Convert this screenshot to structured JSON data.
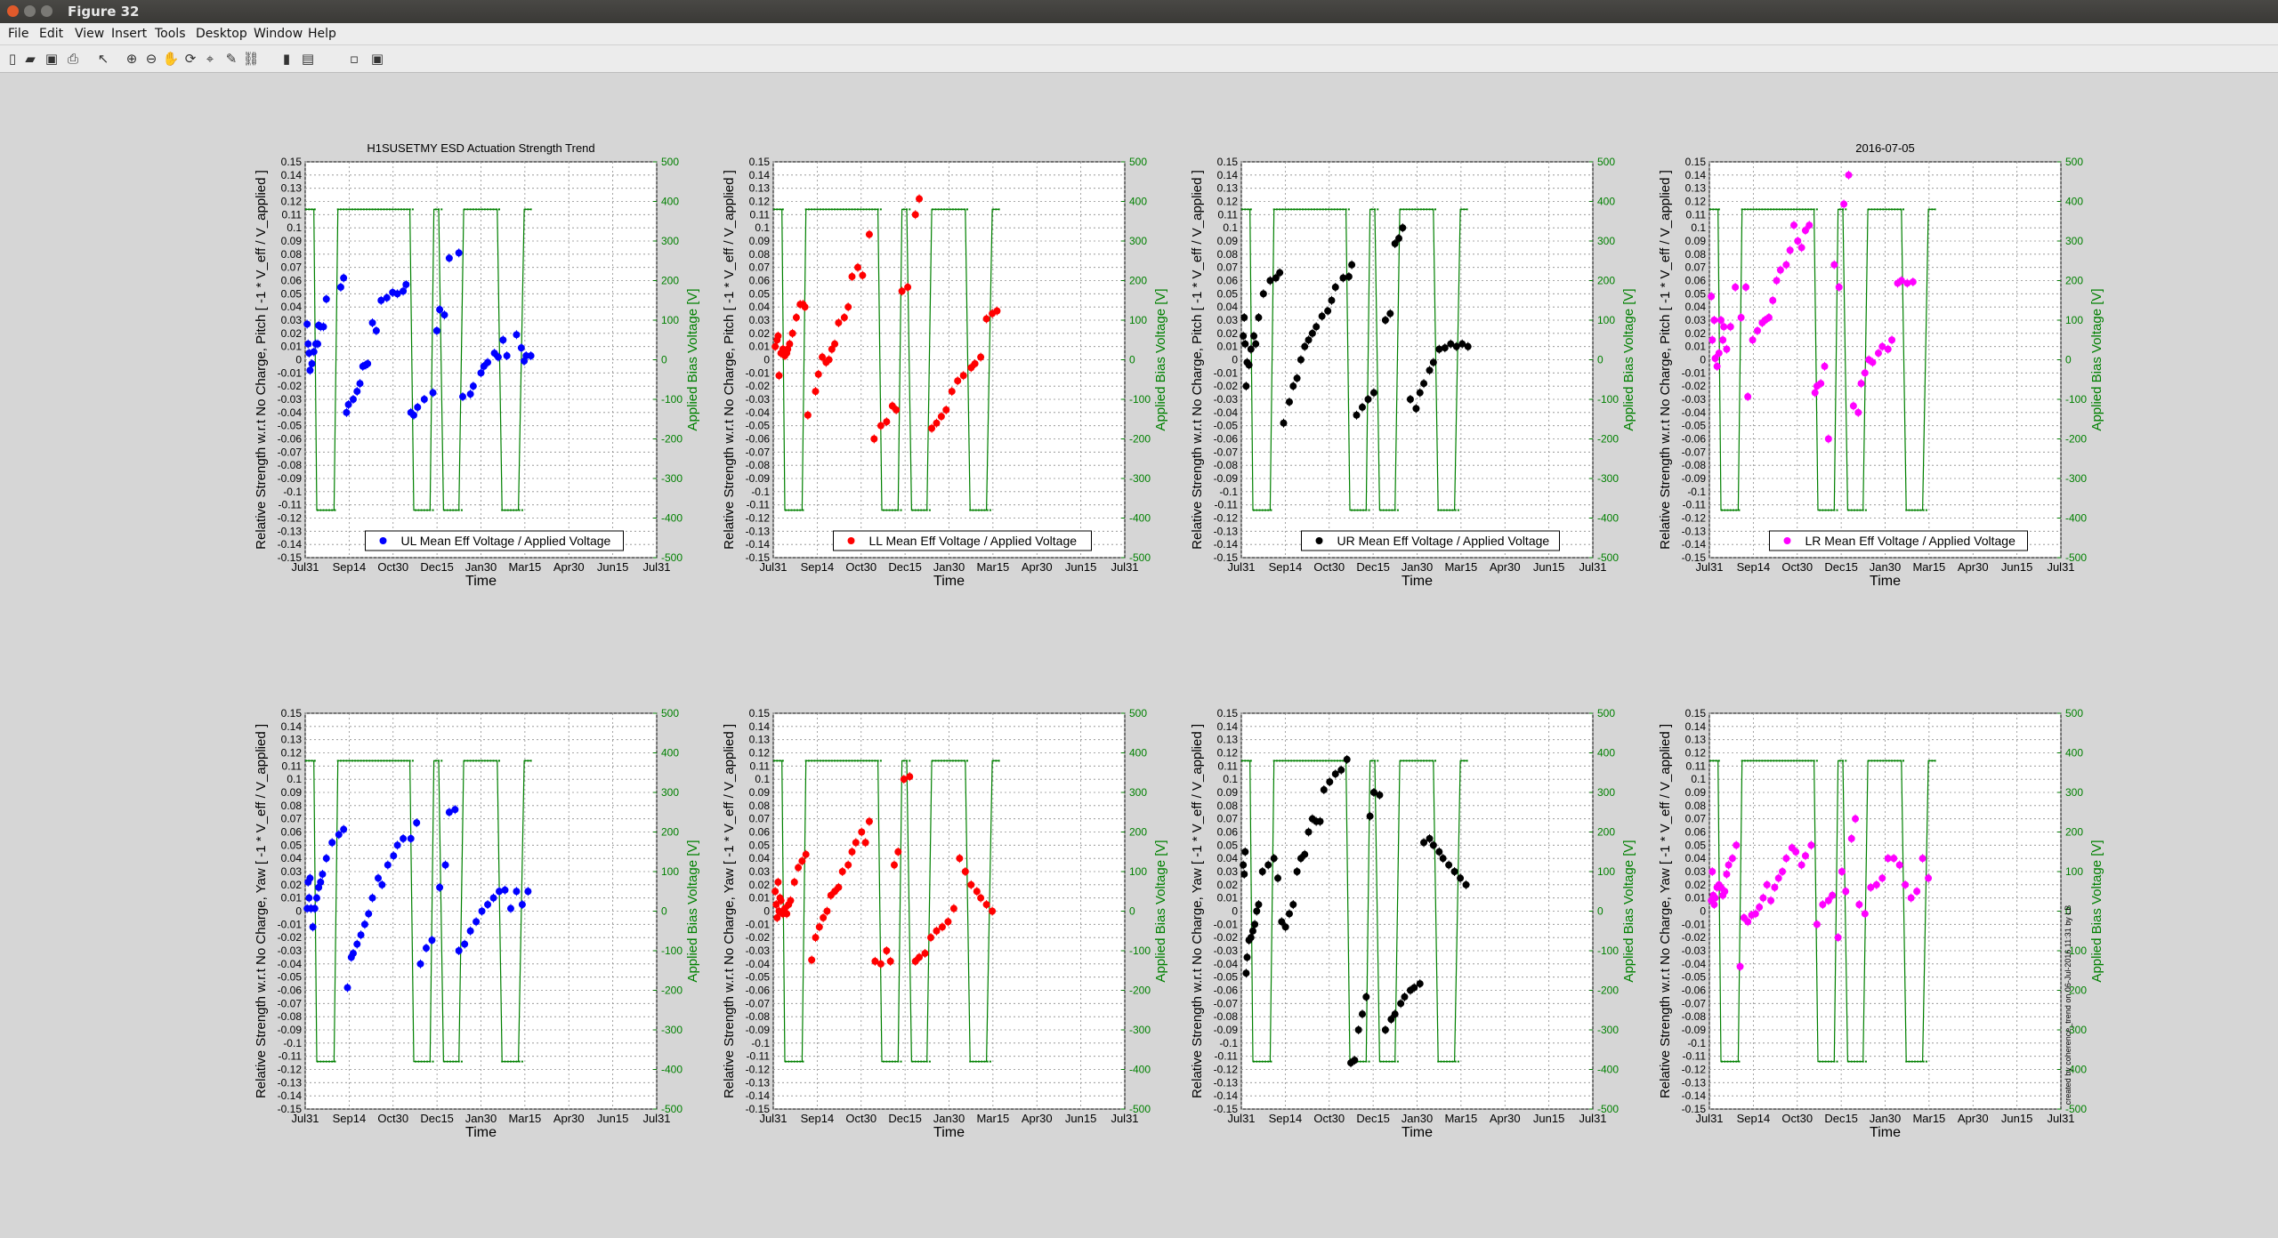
{
  "window": {
    "title": "Figure 32"
  },
  "menu": [
    "File",
    "Edit",
    "View",
    "Insert",
    "Tools",
    "Desktop",
    "Window",
    "Help"
  ],
  "toolbar": [
    {
      "name": "new-figure-icon",
      "glyph": "▯"
    },
    {
      "name": "open-file-icon",
      "glyph": "▰"
    },
    {
      "name": "save-icon",
      "glyph": "▣"
    },
    {
      "name": "print-icon",
      "glyph": "⎙"
    },
    {
      "name": "edit-plot-icon",
      "glyph": "↖"
    },
    {
      "name": "zoom-in-icon",
      "glyph": "⊕"
    },
    {
      "name": "zoom-out-icon",
      "glyph": "⊖"
    },
    {
      "name": "pan-icon",
      "glyph": "✋"
    },
    {
      "name": "rotate-3d-icon",
      "glyph": "⟳"
    },
    {
      "name": "data-cursor-icon",
      "glyph": "⌖"
    },
    {
      "name": "brush-icon",
      "glyph": "✎"
    },
    {
      "name": "link-plot-icon",
      "glyph": "⛓"
    },
    {
      "name": "insert-colorbar-icon",
      "glyph": "▮"
    },
    {
      "name": "insert-legend-icon",
      "glyph": "▤"
    },
    {
      "name": "hide-plot-tools-icon",
      "glyph": "▫"
    },
    {
      "name": "show-plot-tools-icon",
      "glyph": "▣"
    }
  ],
  "figure": {
    "suptitle_left": "H1SUSETMY ESD Actuation Strength Trend",
    "suptitle_right": "2016-07-05",
    "side_note": "created by coherence_trend on 06-Jul-2016 11:31 by LB"
  },
  "colors": {
    "UL": "#0000ff",
    "LL": "#ff0000",
    "UR": "#000000",
    "LR": "#ff00ff",
    "bias": "#008000",
    "grid": "#8c8c8c",
    "background": "#d6d6d6",
    "axes": "#ffffff"
  },
  "chart_data": [
    {
      "type": "scatter",
      "quadrant": "UL",
      "dof": "Pitch",
      "legend": "UL Mean Eff Voltage / Applied Voltage",
      "ylabel": "Relative Strength w.r.t No Charge, Pitch [ -1 * V_eff / V_applied ]",
      "y2label": "Applied Bias Voltage [V]",
      "xlabel": "Time",
      "xticks": [
        "Jul31",
        "Sep14",
        "Oct30",
        "Dec15",
        "Jan30",
        "Mar15",
        "Apr30",
        "Jun15",
        "Jul31"
      ],
      "ylim": [
        -0.15,
        0.15
      ],
      "y2lim": [
        -500,
        500
      ],
      "grid": true,
      "legend_loc": "bottom",
      "x_day": [
        2,
        3,
        4,
        5,
        7,
        9,
        11,
        13,
        14,
        16,
        19,
        22,
        37,
        40,
        43,
        45,
        50,
        54,
        57,
        60,
        63,
        65,
        70,
        74,
        79,
        85,
        91,
        96,
        102,
        105,
        110,
        113,
        117,
        124,
        133,
        137,
        140,
        145,
        150,
        160,
        164,
        172,
        175,
        183,
        186,
        190,
        197,
        201,
        206,
        210,
        220,
        225,
        228,
        230,
        235
      ],
      "y": [
        0.027,
        0.012,
        0.005,
        -0.008,
        -0.003,
        0.006,
        0.012,
        0.012,
        0.026,
        0.025,
        0.025,
        0.046,
        0.055,
        0.062,
        -0.04,
        -0.034,
        -0.03,
        -0.024,
        -0.018,
        -0.005,
        -0.004,
        -0.003,
        0.028,
        0.022,
        0.045,
        0.047,
        0.051,
        0.05,
        0.052,
        0.057,
        -0.04,
        -0.042,
        -0.036,
        -0.03,
        -0.025,
        0.022,
        0.038,
        0.034,
        0.077,
        0.081,
        -0.028,
        -0.026,
        -0.02,
        -0.01,
        -0.005,
        -0.002,
        0.005,
        0.002,
        0.015,
        0.003,
        0.019,
        0.009,
        -0.001,
        0.003,
        0.003
      ]
    },
    {
      "type": "scatter",
      "quadrant": "LL",
      "dof": "Pitch",
      "legend": "LL Mean Eff Voltage / Applied Voltage",
      "ylabel": "Relative Strength w.r.t No Charge, Pitch [ -1 * V_eff / V_applied ]",
      "y2label": "Applied Bias Voltage [V]",
      "xlabel": "Time",
      "xticks": [
        "Jul31",
        "Sep14",
        "Oct30",
        "Dec15",
        "Jan30",
        "Mar15",
        "Apr30",
        "Jun15",
        "Jul31"
      ],
      "ylim": [
        -0.15,
        0.15
      ],
      "y2lim": [
        -500,
        500
      ],
      "grid": true,
      "legend_loc": "bottom",
      "x_day": [
        2,
        4,
        5,
        6,
        8,
        10,
        12,
        14,
        15,
        17,
        20,
        24,
        28,
        31,
        33,
        36,
        44,
        47,
        51,
        55,
        58,
        61,
        64,
        68,
        74,
        78,
        82,
        88,
        93,
        100,
        105,
        112,
        118,
        124,
        128,
        134,
        140,
        148,
        152,
        165,
        170,
        175,
        180,
        186,
        192,
        198,
        206,
        210,
        216,
        222,
        228,
        233
      ],
      "y": [
        0.01,
        0.015,
        0.018,
        -0.012,
        0.005,
        0.008,
        0.003,
        0.005,
        0.008,
        0.012,
        0.02,
        0.032,
        0.042,
        0.042,
        0.04,
        -0.042,
        -0.024,
        -0.011,
        0.002,
        -0.002,
        0.0,
        0.008,
        0.012,
        0.028,
        0.032,
        0.04,
        0.063,
        0.07,
        0.064,
        0.095,
        -0.06,
        -0.05,
        -0.047,
        -0.035,
        -0.038,
        0.052,
        0.055,
        0.11,
        0.122,
        -0.052,
        -0.048,
        -0.043,
        -0.038,
        -0.024,
        -0.016,
        -0.012,
        -0.006,
        -0.003,
        0.002,
        0.031,
        0.035,
        0.037
      ]
    },
    {
      "type": "scatter",
      "quadrant": "UR",
      "dof": "Pitch",
      "legend": "UR Mean Eff Voltage / Applied Voltage",
      "ylabel": "Relative Strength w.r.t No Charge, Pitch [ -1 * V_eff / V_applied ]",
      "y2label": "Applied Bias Voltage [V]",
      "xlabel": "Time",
      "xticks": [
        "Jul31",
        "Sep14",
        "Oct30",
        "Dec15",
        "Jan30",
        "Mar15",
        "Apr30",
        "Jun15",
        "Jul31"
      ],
      "ylim": [
        -0.15,
        0.15
      ],
      "y2lim": [
        -500,
        500
      ],
      "grid": true,
      "legend_loc": "bottom",
      "x_day": [
        2,
        3,
        4,
        5,
        6,
        8,
        10,
        13,
        15,
        18,
        23,
        30,
        36,
        40,
        44,
        50,
        54,
        58,
        62,
        66,
        70,
        74,
        78,
        84,
        90,
        94,
        98,
        106,
        112,
        115,
        120,
        126,
        132,
        138,
        150,
        155,
        160,
        164,
        168,
        176,
        182,
        186,
        190,
        196,
        200,
        206,
        212,
        218,
        224,
        230,
        236
      ],
      "y": [
        0.018,
        0.032,
        0.012,
        -0.02,
        -0.002,
        -0.004,
        0.008,
        0.018,
        0.012,
        0.032,
        0.05,
        0.06,
        0.062,
        0.066,
        -0.048,
        -0.032,
        -0.02,
        -0.014,
        0.0,
        0.01,
        0.015,
        0.02,
        0.025,
        0.033,
        0.037,
        0.045,
        0.055,
        0.062,
        0.063,
        0.072,
        -0.042,
        -0.036,
        -0.03,
        -0.025,
        0.03,
        0.035,
        0.088,
        0.092,
        0.1,
        -0.03,
        -0.037,
        -0.025,
        -0.018,
        -0.008,
        -0.002,
        0.008,
        0.009,
        0.012,
        0.01,
        0.012,
        0.01
      ]
    },
    {
      "type": "scatter",
      "quadrant": "LR",
      "dof": "Pitch",
      "legend": "LR Mean Eff Voltage / Applied Voltage",
      "ylabel": "Relative Strength w.r.t No Charge, Pitch [ -1 * V_eff / V_applied ]",
      "y2label": "Applied Bias Voltage [V]",
      "xlabel": "Time",
      "xticks": [
        "Jul31",
        "Sep14",
        "Oct30",
        "Dec15",
        "Jan30",
        "Mar15",
        "Apr30",
        "Jun15",
        "Jul31"
      ],
      "ylim": [
        -0.15,
        0.15
      ],
      "y2lim": [
        -500,
        500
      ],
      "grid": true,
      "legend_loc": "bottom",
      "x_day": [
        2,
        3,
        5,
        6,
        8,
        10,
        12,
        14,
        15,
        18,
        22,
        27,
        33,
        38,
        40,
        45,
        50,
        55,
        58,
        62,
        66,
        70,
        74,
        80,
        84,
        88,
        92,
        96,
        100,
        104,
        110,
        112,
        116,
        120,
        124,
        130,
        135,
        140,
        145,
        150,
        155,
        158,
        162,
        166,
        170,
        176,
        180,
        186,
        190,
        196,
        200,
        206,
        212
      ],
      "y": [
        0.048,
        0.015,
        0.03,
        0.001,
        -0.005,
        0.005,
        0.03,
        0.015,
        0.025,
        0.008,
        0.025,
        0.055,
        0.032,
        0.055,
        -0.028,
        0.015,
        0.022,
        0.028,
        0.03,
        0.032,
        0.045,
        0.06,
        0.068,
        0.072,
        0.083,
        0.102,
        0.09,
        0.085,
        0.098,
        0.102,
        -0.025,
        -0.02,
        -0.018,
        -0.005,
        -0.06,
        0.072,
        0.055,
        0.118,
        0.14,
        -0.035,
        -0.04,
        -0.018,
        -0.01,
        0.0,
        -0.002,
        0.005,
        0.01,
        0.008,
        0.015,
        0.058,
        0.06,
        0.058,
        0.059
      ]
    },
    {
      "type": "scatter",
      "quadrant": "UL",
      "dof": "Yaw",
      "legend": "",
      "ylabel": "Relative Strength w.r.t No Charge, Yaw [ -1 * V_eff / V_applied ]",
      "y2label": "Applied Bias Voltage [V]",
      "xlabel": "Time",
      "xticks": [
        "Jul31",
        "Sep14",
        "Oct30",
        "Dec15",
        "Jan30",
        "Mar15",
        "Apr30",
        "Jun15",
        "Jul31"
      ],
      "ylim": [
        -0.15,
        0.15
      ],
      "y2lim": [
        -500,
        500
      ],
      "grid": true,
      "x_day": [
        2,
        3,
        4,
        5,
        6,
        8,
        10,
        12,
        14,
        16,
        18,
        22,
        28,
        35,
        40,
        44,
        48,
        50,
        54,
        58,
        62,
        66,
        70,
        76,
        80,
        86,
        92,
        96,
        102,
        110,
        116,
        120,
        126,
        132,
        140,
        146,
        150,
        156,
        160,
        166,
        172,
        178,
        184,
        190,
        196,
        202,
        208,
        214,
        220,
        226,
        232
      ],
      "y": [
        0.002,
        0.022,
        0.01,
        0.025,
        0.002,
        -0.012,
        0.002,
        0.01,
        0.018,
        0.022,
        0.028,
        0.04,
        0.052,
        0.058,
        0.062,
        -0.058,
        -0.035,
        -0.032,
        -0.025,
        -0.018,
        -0.01,
        -0.002,
        0.01,
        0.025,
        0.02,
        0.035,
        0.042,
        0.05,
        0.055,
        0.055,
        0.067,
        -0.04,
        -0.028,
        -0.022,
        0.018,
        0.035,
        0.075,
        0.077,
        -0.03,
        -0.025,
        -0.015,
        -0.008,
        0.0,
        0.005,
        0.01,
        0.015,
        0.016,
        0.002,
        0.015,
        0.005,
        0.015
      ]
    },
    {
      "type": "scatter",
      "quadrant": "LL",
      "dof": "Yaw",
      "legend": "",
      "ylabel": "Relative Strength w.r.t No Charge, Yaw [ -1 * V_eff / V_applied ]",
      "y2label": "Applied Bias Voltage [V]",
      "xlabel": "Time",
      "xticks": [
        "Jul31",
        "Sep14",
        "Oct30",
        "Dec15",
        "Jan30",
        "Mar15",
        "Apr30",
        "Jun15",
        "Jul31"
      ],
      "ylim": [
        -0.15,
        0.15
      ],
      "y2lim": [
        -500,
        500
      ],
      "grid": true,
      "x_day": [
        2,
        3,
        4,
        5,
        6,
        7,
        8,
        10,
        12,
        14,
        16,
        18,
        22,
        26,
        30,
        34,
        40,
        44,
        48,
        52,
        56,
        60,
        64,
        68,
        72,
        78,
        82,
        86,
        92,
        96,
        100,
        106,
        112,
        118,
        122,
        126,
        130,
        136,
        142,
        148,
        152,
        158,
        164,
        170,
        176,
        182,
        188,
        194,
        200,
        206,
        212,
        216,
        222,
        228
      ],
      "y": [
        0.015,
        0.005,
        -0.005,
        0.022,
        0.0,
        0.01,
        0.008,
        -0.002,
        0.002,
        -0.002,
        0.005,
        0.008,
        0.022,
        0.033,
        0.038,
        0.043,
        -0.037,
        -0.02,
        -0.012,
        -0.005,
        0.0,
        0.012,
        0.015,
        0.018,
        0.03,
        0.035,
        0.045,
        0.052,
        0.06,
        0.052,
        0.068,
        -0.038,
        -0.04,
        -0.03,
        -0.038,
        0.035,
        0.045,
        0.1,
        0.102,
        -0.038,
        -0.035,
        -0.032,
        -0.02,
        -0.015,
        -0.012,
        -0.008,
        0.002,
        0.04,
        0.03,
        0.02,
        0.015,
        0.01,
        0.005,
        0.0
      ]
    },
    {
      "type": "scatter",
      "quadrant": "UR",
      "dof": "Yaw",
      "legend": "",
      "ylabel": "Relative Strength w.r.t No Charge, Yaw [ -1 * V_eff / V_applied ]",
      "y2label": "Applied Bias Voltage [V]",
      "xlabel": "Time",
      "xticks": [
        "Jul31",
        "Sep14",
        "Oct30",
        "Dec15",
        "Jan30",
        "Mar15",
        "Apr30",
        "Jun15",
        "Jul31"
      ],
      "ylim": [
        -0.15,
        0.15
      ],
      "y2lim": [
        -500,
        500
      ],
      "grid": true,
      "x_day": [
        2,
        3,
        4,
        5,
        6,
        8,
        10,
        12,
        14,
        16,
        18,
        22,
        28,
        34,
        38,
        42,
        46,
        50,
        54,
        58,
        62,
        66,
        70,
        74,
        78,
        82,
        86,
        92,
        98,
        104,
        110,
        114,
        118,
        122,
        126,
        130,
        134,
        138,
        144,
        150,
        156,
        160,
        166,
        170,
        176,
        180,
        186,
        190,
        196,
        200,
        206,
        210,
        216,
        222,
        228,
        234
      ],
      "y": [
        0.035,
        0.028,
        0.045,
        -0.047,
        -0.035,
        -0.022,
        -0.02,
        -0.015,
        -0.01,
        0.0,
        0.005,
        0.03,
        0.035,
        0.04,
        0.025,
        -0.008,
        -0.012,
        -0.002,
        0.005,
        0.03,
        0.04,
        0.043,
        0.06,
        0.07,
        0.068,
        0.068,
        0.092,
        0.098,
        0.104,
        0.107,
        0.115,
        -0.115,
        -0.113,
        -0.09,
        -0.078,
        -0.065,
        0.072,
        0.09,
        0.088,
        -0.09,
        -0.082,
        -0.078,
        -0.07,
        -0.065,
        -0.06,
        -0.058,
        -0.055,
        0.052,
        0.055,
        0.05,
        0.045,
        0.04,
        0.035,
        0.03,
        0.025,
        0.02
      ]
    },
    {
      "type": "scatter",
      "quadrant": "LR",
      "dof": "Yaw",
      "legend": "",
      "ylabel": "Relative Strength w.r.t No Charge, Yaw [ -1 * V_eff / V_applied ]",
      "y2label": "Applied Bias Voltage [V]",
      "xlabel": "Time",
      "xticks": [
        "Jul31",
        "Sep14",
        "Oct30",
        "Dec15",
        "Jan30",
        "Mar15",
        "Apr30",
        "Jun15",
        "Jul31"
      ],
      "ylim": [
        -0.15,
        0.15
      ],
      "y2lim": [
        -500,
        500
      ],
      "grid": true,
      "x_day": [
        2,
        3,
        4,
        5,
        6,
        8,
        10,
        12,
        14,
        16,
        18,
        20,
        24,
        28,
        32,
        36,
        40,
        44,
        48,
        52,
        56,
        60,
        64,
        68,
        72,
        76,
        80,
        86,
        90,
        96,
        100,
        106,
        112,
        118,
        124,
        128,
        134,
        138,
        142,
        148,
        152,
        156,
        162,
        168,
        174,
        180,
        186,
        192,
        198,
        204,
        210,
        216,
        222,
        228
      ],
      "y": [
        0.008,
        0.03,
        0.012,
        0.005,
        0.01,
        0.018,
        0.02,
        0.018,
        0.012,
        0.015,
        0.028,
        0.035,
        0.04,
        0.05,
        -0.042,
        -0.005,
        -0.008,
        -0.003,
        -0.002,
        0.003,
        0.01,
        0.02,
        0.008,
        0.018,
        0.025,
        0.03,
        0.04,
        0.048,
        0.045,
        0.035,
        0.042,
        0.05,
        -0.01,
        0.005,
        0.008,
        0.012,
        -0.02,
        0.03,
        0.015,
        0.055,
        0.07,
        0.005,
        -0.002,
        0.018,
        0.02,
        0.025,
        0.04,
        0.04,
        0.035,
        0.02,
        0.01,
        0.015,
        0.04,
        0.025
      ]
    }
  ],
  "bias_schedule": {
    "days": [
      0,
      9,
      9,
      12,
      12,
      30,
      30,
      34,
      34,
      109,
      109,
      113,
      113,
      130,
      130,
      134,
      134,
      139,
      139,
      144,
      144,
      160,
      160,
      165,
      165,
      200,
      200,
      205,
      205,
      222,
      222,
      228,
      228,
      235
    ],
    "volts": [
      380,
      380,
      380,
      -380,
      -380,
      -380,
      -380,
      380,
      380,
      380,
      380,
      -380,
      -380,
      -380,
      -380,
      380,
      380,
      380,
      380,
      -380,
      -380,
      -380,
      -380,
      380,
      380,
      380,
      380,
      -380,
      -380,
      -380,
      -380,
      380,
      380,
      380
    ]
  }
}
